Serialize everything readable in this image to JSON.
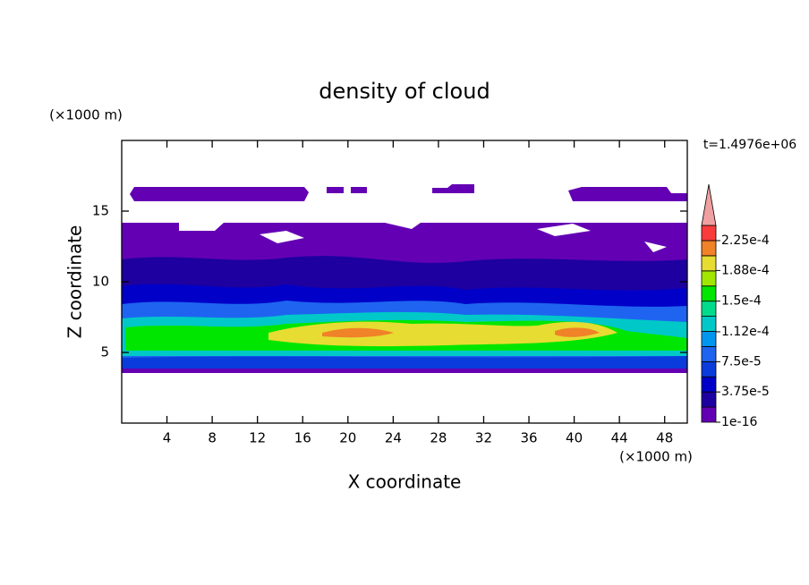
{
  "chart_data": {
    "type": "contour",
    "title": "density of cloud",
    "xlabel": "X coordinate",
    "ylabel": "Z coordinate",
    "x_unit": "(×1000 m)",
    "y_unit": "(×1000 m)",
    "annotation": "t=1.4976e+06",
    "xlim": [
      0,
      50
    ],
    "ylim": [
      0,
      20
    ],
    "xticks": [
      4,
      8,
      12,
      16,
      20,
      24,
      28,
      32,
      36,
      40,
      44,
      48
    ],
    "yticks": [
      5,
      10,
      15
    ],
    "colorbar": {
      "levels": [
        {
          "value": 1e-16,
          "label": "1e-16"
        },
        {
          "value": 3.75e-05,
          "label": "3.75e-5"
        },
        {
          "value": 7.5e-05,
          "label": "7.5e-5"
        },
        {
          "value": 0.000112,
          "label": "1.12e-4"
        },
        {
          "value": 0.00015,
          "label": "1.5e-4"
        },
        {
          "value": 0.000188,
          "label": "1.88e-4"
        },
        {
          "value": 0.000225,
          "label": "2.25e-4"
        }
      ],
      "colors": [
        "#6400b4",
        "#1e00a0",
        "#0000c8",
        "#0a3cdc",
        "#1e64f0",
        "#0096f0",
        "#00c8c8",
        "#00dc8c",
        "#00e600",
        "#a0e600",
        "#e6dc32",
        "#f08228",
        "#fa3c3c"
      ],
      "overflow_color": "#f0a0a0"
    }
  }
}
